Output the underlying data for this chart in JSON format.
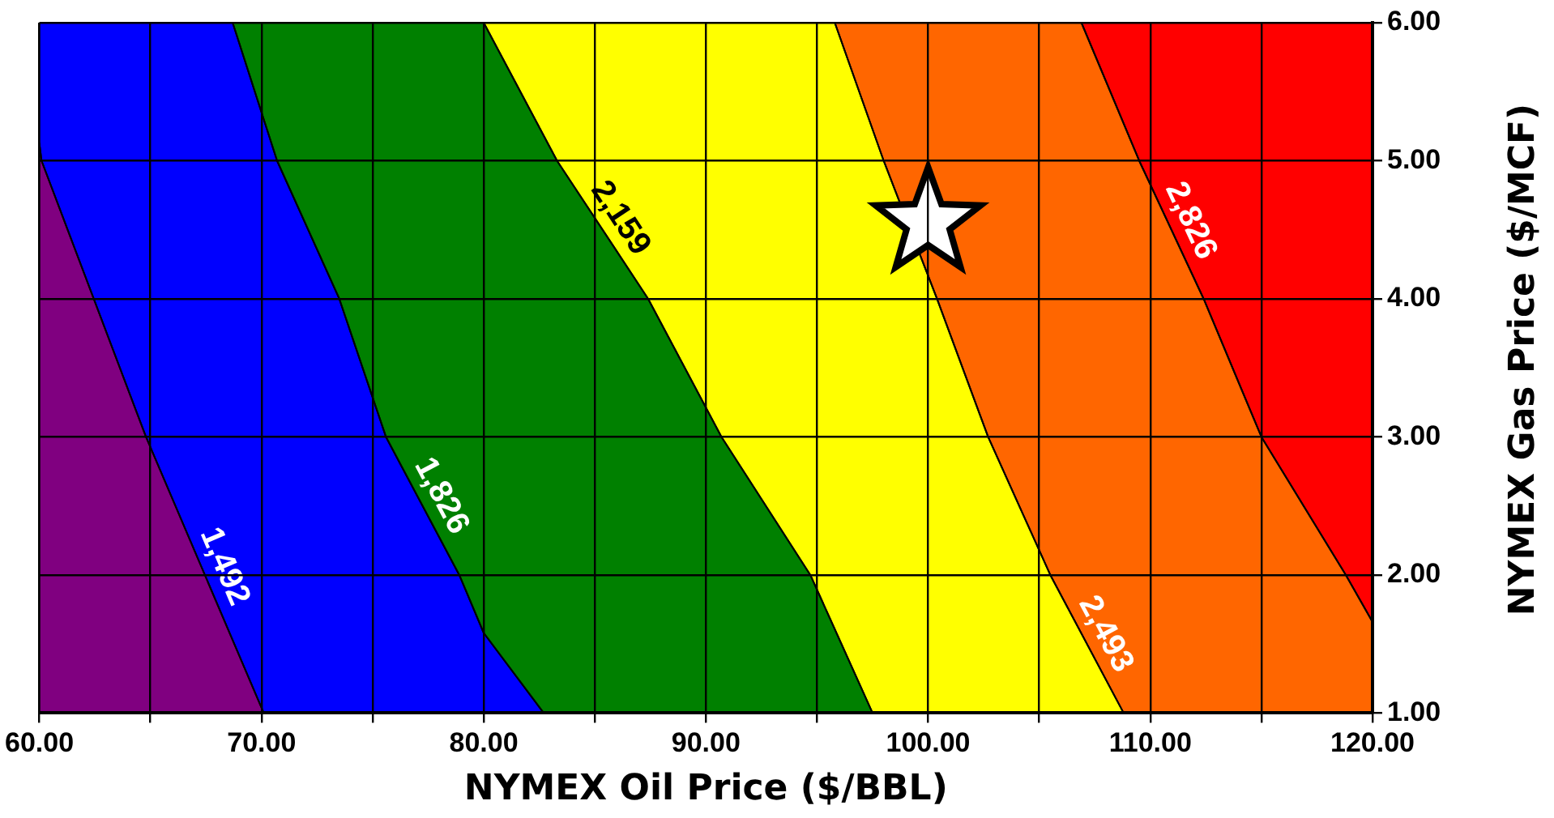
{
  "chart_data": {
    "type": "area",
    "xlabel": "NYMEX Oil Price ($/BBL)",
    "ylabel": "NYMEX Gas Price ($/MCF)",
    "xlim": [
      60,
      120
    ],
    "ylim": [
      1,
      6
    ],
    "xticks": [
      {
        "value": 60,
        "label": "60.00"
      },
      {
        "value": 65,
        "label": null
      },
      {
        "value": 70,
        "label": "70.00"
      },
      {
        "value": 75,
        "label": null
      },
      {
        "value": 80,
        "label": "80.00"
      },
      {
        "value": 85,
        "label": null
      },
      {
        "value": 90,
        "label": "90.00"
      },
      {
        "value": 95,
        "label": null
      },
      {
        "value": 100,
        "label": "100.00"
      },
      {
        "value": 105,
        "label": null
      },
      {
        "value": 110,
        "label": "110.00"
      },
      {
        "value": 115,
        "label": null
      },
      {
        "value": 120,
        "label": "120.00"
      }
    ],
    "yticks": [
      {
        "value": 1,
        "label": "1.00"
      },
      {
        "value": 2,
        "label": "2.00"
      },
      {
        "value": 3,
        "label": "3.00"
      },
      {
        "value": 4,
        "label": "4.00"
      },
      {
        "value": 5,
        "label": "5.00"
      },
      {
        "value": 6,
        "label": "6.00"
      }
    ],
    "grid": true,
    "series": [
      {
        "color": "#800080",
        "x": [
          60,
          60.1,
          64.8,
          70.1,
          60
        ],
        "values": [
          5.13,
          5,
          3,
          1,
          1
        ]
      },
      {
        "name": "1,492",
        "color": "#0000ff",
        "x": [
          60,
          68.7,
          70.7,
          73.5,
          75.6,
          78.9,
          80,
          82.7,
          70.1,
          64.8,
          60.1,
          60
        ],
        "values": [
          6,
          6,
          5,
          4,
          3,
          2,
          1.58,
          1,
          1,
          3,
          5,
          5.13
        ]
      },
      {
        "name": "1,826",
        "color": "#008000",
        "x": [
          68.7,
          80,
          83.3,
          87.4,
          90.7,
          94.7,
          97.5,
          82.7,
          80,
          78.9,
          75.6,
          73.5,
          70.7
        ],
        "values": [
          6,
          6,
          5,
          4,
          3,
          2,
          1,
          1,
          1.58,
          2,
          3,
          4,
          5
        ]
      },
      {
        "name": "2,159",
        "color": "#ffff00",
        "x": [
          80,
          95.8,
          98,
          100.4,
          102.7,
          105.5,
          108.8,
          97.5,
          94.7,
          90.7,
          87.4,
          83.3
        ],
        "values": [
          6,
          6,
          5,
          4,
          3,
          2,
          1,
          1,
          2,
          3,
          4,
          5
        ]
      },
      {
        "name": "2,493",
        "color": "#ff6600",
        "x": [
          95.8,
          106.9,
          109.5,
          112.4,
          115,
          118.8,
          120,
          120,
          108.8,
          105.5,
          102.7,
          100.4,
          98
        ],
        "values": [
          6,
          6,
          5,
          4,
          3,
          2,
          1.66,
          1,
          1,
          2,
          3,
          4,
          5
        ]
      },
      {
        "name": "2,826",
        "color": "#ff0000",
        "x": [
          106.9,
          120,
          120,
          118.8,
          115,
          112.4,
          109.5
        ],
        "values": [
          6,
          6,
          1.66,
          2,
          3,
          4,
          5
        ]
      },
      {
        "type": "scatter",
        "color": "#ffffff",
        "marker": "star",
        "x": [
          100
        ],
        "values": [
          4.6
        ]
      }
    ]
  }
}
